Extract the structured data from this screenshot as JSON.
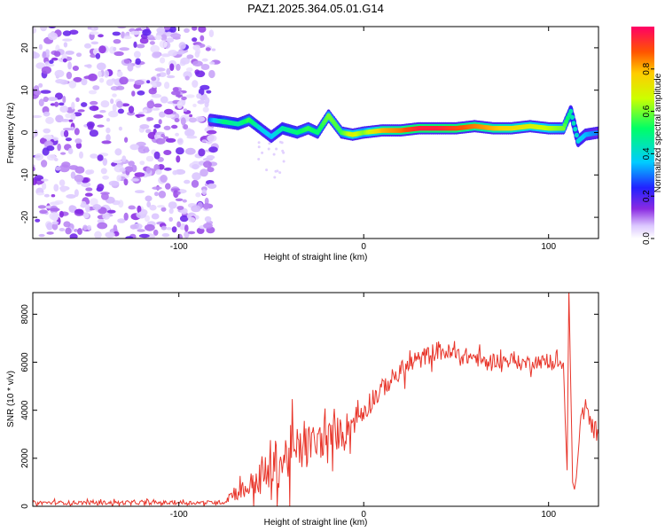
{
  "title": "PAZ1.2025.364.05.01.G14",
  "chart_data": [
    {
      "type": "heatmap",
      "xlabel": "Height of straight line (km)",
      "ylabel": "Frequency (Hz)",
      "xlim": [
        -179,
        127
      ],
      "ylim": [
        -25,
        25
      ],
      "xticks": [
        -100,
        0,
        100
      ],
      "yticks": [
        -20,
        -10,
        0,
        10,
        20
      ],
      "colorbar": {
        "label": "Normalized spectral amplitude",
        "range": [
          0,
          1
        ],
        "ticks": [
          "0.0",
          "0.2",
          "0.4",
          "0.6",
          "0.8"
        ]
      },
      "noise_region_km": [
        -179,
        -80
      ],
      "ridge": [
        {
          "km": -83,
          "hz": 3,
          "amp": 0.3
        },
        {
          "km": -75,
          "hz": 2.5,
          "amp": 0.5
        },
        {
          "km": -68,
          "hz": 2,
          "amp": 0.45
        },
        {
          "km": -62,
          "hz": 3,
          "amp": 0.55
        },
        {
          "km": -56,
          "hz": 1,
          "amp": 0.4
        },
        {
          "km": -50,
          "hz": -1,
          "amp": 0.35
        },
        {
          "km": -44,
          "hz": 1,
          "amp": 0.45
        },
        {
          "km": -36,
          "hz": 0,
          "amp": 0.5
        },
        {
          "km": -30,
          "hz": 1,
          "amp": 0.55
        },
        {
          "km": -25,
          "hz": 0,
          "amp": 0.5
        },
        {
          "km": -19,
          "hz": 4,
          "amp": 0.6
        },
        {
          "km": -12,
          "hz": 0,
          "amp": 0.55
        },
        {
          "km": -6,
          "hz": -0.5,
          "amp": 0.7
        },
        {
          "km": 0,
          "hz": 0,
          "amp": 0.6
        },
        {
          "km": 10,
          "hz": 0.5,
          "amp": 0.8
        },
        {
          "km": 20,
          "hz": 0.5,
          "amp": 0.85
        },
        {
          "km": 30,
          "hz": 1,
          "amp": 0.95
        },
        {
          "km": 40,
          "hz": 1,
          "amp": 0.95
        },
        {
          "km": 50,
          "hz": 1,
          "amp": 0.9
        },
        {
          "km": 60,
          "hz": 1.5,
          "amp": 0.85
        },
        {
          "km": 70,
          "hz": 1,
          "amp": 0.8
        },
        {
          "km": 80,
          "hz": 1,
          "amp": 0.75
        },
        {
          "km": 90,
          "hz": 1.5,
          "amp": 0.7
        },
        {
          "km": 100,
          "hz": 1,
          "amp": 0.65
        },
        {
          "km": 108,
          "hz": 1,
          "amp": 0.6
        },
        {
          "km": 112,
          "hz": 5,
          "amp": 0.45
        },
        {
          "km": 116,
          "hz": -2,
          "amp": 0.4
        },
        {
          "km": 120,
          "hz": -0.5,
          "amp": 0.35
        },
        {
          "km": 127,
          "hz": 0,
          "amp": 0.3
        }
      ]
    },
    {
      "type": "line",
      "xlabel": "Height of straight line (km)",
      "ylabel": "SNR (10 * v/v)",
      "xlim": [
        -179,
        127
      ],
      "ylim": [
        0,
        8900
      ],
      "xticks": [
        -100,
        0,
        100
      ],
      "yticks": [
        0,
        2000,
        4000,
        6000,
        8000
      ],
      "series": [
        {
          "name": "SNR",
          "color": "#e8352a",
          "x": [
            -179,
            -150,
            -120,
            -90,
            -75,
            -72,
            -65,
            -55,
            -50,
            -45,
            -40,
            -36,
            -33,
            -30,
            -25,
            -20,
            -15,
            -10,
            -5,
            0,
            5,
            10,
            15,
            20,
            25,
            30,
            35,
            40,
            45,
            50,
            55,
            60,
            65,
            70,
            75,
            80,
            85,
            90,
            95,
            100,
            105,
            108,
            110,
            111,
            112,
            113,
            114,
            115,
            116,
            118,
            120,
            122,
            125,
            127
          ],
          "y": [
            150,
            150,
            150,
            150,
            170,
            500,
            700,
            1200,
            1500,
            1800,
            2200,
            2300,
            2400,
            2600,
            2700,
            2800,
            3000,
            3200,
            3600,
            4000,
            4500,
            4900,
            5300,
            5600,
            5900,
            6100,
            6300,
            6500,
            6400,
            6300,
            6250,
            6200,
            6000,
            6100,
            6050,
            6100,
            5950,
            6000,
            6050,
            5950,
            6000,
            5800,
            1500,
            9000,
            5000,
            1000,
            700,
            1200,
            2200,
            4000,
            4100,
            3500,
            3200,
            3000
          ],
          "noise_amplitude": [
            80,
            80,
            80,
            80,
            80,
            300,
            400,
            700,
            1400,
            900,
            1200,
            1000,
            900,
            800,
            800,
            700,
            700,
            700,
            600,
            500,
            500,
            400,
            400,
            400,
            400,
            400,
            400,
            400,
            400,
            350,
            350,
            350,
            300,
            300,
            300,
            300,
            300,
            300,
            300,
            300,
            300,
            400,
            0,
            0,
            0,
            0,
            0,
            0,
            0,
            600,
            500,
            500,
            400,
            400
          ]
        }
      ]
    }
  ]
}
